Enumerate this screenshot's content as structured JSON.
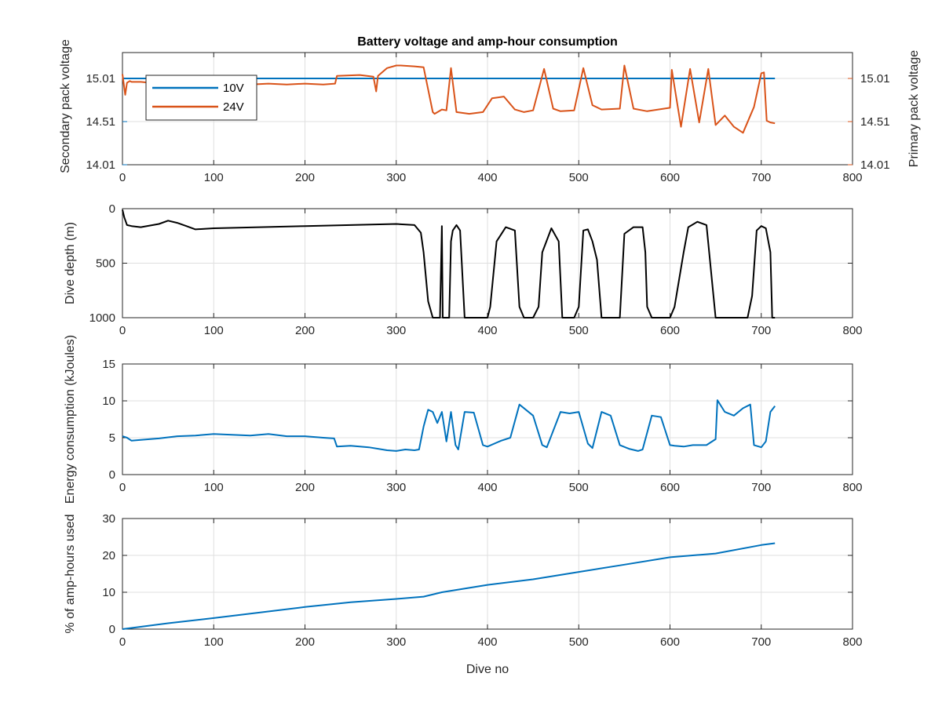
{
  "figure": {
    "title": "Battery voltage and amp-hour consumption",
    "x_label": "Dive no"
  },
  "colors": {
    "blue": "#0072bd",
    "orange": "#d95319",
    "black": "#000000"
  },
  "chart_data": [
    {
      "type": "line",
      "title": "Battery voltage and amp-hour consumption",
      "ylabel_left": "Secondary pack voltage",
      "ylabel_right": "Primary pack voltage",
      "xlim": [
        0,
        800
      ],
      "xticks": [
        0,
        100,
        200,
        300,
        400,
        500,
        600,
        700,
        800
      ],
      "ylim": [
        14.01,
        15.31
      ],
      "yticks": [
        14.01,
        14.51,
        15.01
      ],
      "ytick_labels": [
        "14.01",
        "14.51",
        "15.01"
      ],
      "grid": true,
      "legend": {
        "placement": "top-left",
        "entries": [
          "10V",
          "24V"
        ]
      },
      "series": [
        {
          "name": "10V",
          "axis": "left",
          "color": "#0072bd",
          "x": [
            0,
            715
          ],
          "y": [
            15.01,
            15.01
          ]
        },
        {
          "name": "24V",
          "axis": "right",
          "color": "#d95319",
          "x": [
            0,
            3,
            5,
            8,
            10,
            20,
            30,
            40,
            60,
            80,
            100,
            120,
            140,
            160,
            180,
            200,
            220,
            233,
            235,
            260,
            275,
            278,
            280,
            290,
            300,
            305,
            320,
            330,
            340,
            342,
            350,
            355,
            360,
            366,
            380,
            395,
            405,
            418,
            430,
            440,
            450,
            462,
            472,
            480,
            495,
            505,
            515,
            525,
            545,
            550,
            560,
            575,
            600,
            602,
            612,
            622,
            632,
            642,
            650,
            660,
            670,
            680,
            692,
            700,
            703,
            706,
            710,
            715
          ],
          "y": [
            15.06,
            14.82,
            14.96,
            14.98,
            14.97,
            14.97,
            14.96,
            14.97,
            14.96,
            14.95,
            14.96,
            14.95,
            14.94,
            14.95,
            14.94,
            14.95,
            14.94,
            14.95,
            15.04,
            15.05,
            15.03,
            14.86,
            15.04,
            15.13,
            15.16,
            15.16,
            15.15,
            15.14,
            14.62,
            14.6,
            14.65,
            14.64,
            15.13,
            14.62,
            14.6,
            14.62,
            14.78,
            14.8,
            14.65,
            14.62,
            14.64,
            15.12,
            14.66,
            14.63,
            14.64,
            15.13,
            14.7,
            14.65,
            14.66,
            15.16,
            14.66,
            14.63,
            14.67,
            15.11,
            14.45,
            15.12,
            14.5,
            15.12,
            14.47,
            14.58,
            14.45,
            14.38,
            14.68,
            15.07,
            15.08,
            14.52,
            14.5,
            14.49
          ]
        }
      ]
    },
    {
      "type": "line",
      "ylabel": "Dive depth (m)",
      "xlim": [
        0,
        800
      ],
      "xticks": [
        0,
        100,
        200,
        300,
        400,
        500,
        600,
        700,
        800
      ],
      "ylim": [
        0,
        1000
      ],
      "y_reversed": true,
      "yticks": [
        0,
        500,
        1000
      ],
      "grid": true,
      "series": [
        {
          "color": "#000000",
          "x": [
            0,
            2,
            5,
            10,
            20,
            40,
            50,
            60,
            70,
            80,
            100,
            150,
            200,
            250,
            300,
            320,
            327,
            330,
            335,
            340,
            345,
            348,
            350,
            351,
            352,
            355,
            358,
            360,
            362,
            366,
            370,
            375,
            385,
            395,
            400,
            403,
            410,
            420,
            430,
            435,
            440,
            450,
            456,
            460,
            470,
            478,
            482,
            490,
            495,
            500,
            505,
            510,
            515,
            520,
            525,
            530,
            540,
            545,
            550,
            560,
            570,
            573,
            575,
            580,
            590,
            600,
            605,
            615,
            620,
            630,
            640,
            650,
            653,
            655,
            660,
            670,
            680,
            685,
            690,
            695,
            700,
            705,
            710,
            712,
            715
          ],
          "y": [
            10,
            80,
            150,
            160,
            170,
            140,
            110,
            130,
            160,
            190,
            180,
            170,
            160,
            150,
            140,
            150,
            220,
            400,
            850,
            1000,
            1000,
            1000,
            160,
            1000,
            1000,
            1000,
            1000,
            300,
            200,
            150,
            200,
            1000,
            1000,
            1000,
            1000,
            900,
            300,
            170,
            200,
            900,
            1000,
            1000,
            900,
            400,
            180,
            300,
            1000,
            1000,
            1000,
            900,
            200,
            190,
            300,
            470,
            1000,
            1000,
            1000,
            1000,
            230,
            170,
            170,
            400,
            900,
            1000,
            1000,
            1000,
            900,
            400,
            170,
            120,
            150,
            1000,
            1000,
            1000,
            1000,
            1000,
            1000,
            1000,
            800,
            200,
            160,
            180,
            400,
            1000,
            1000
          ]
        }
      ]
    },
    {
      "type": "line",
      "ylabel": "Energy consumption (kJoules)",
      "xlim": [
        0,
        800
      ],
      "xticks": [
        0,
        100,
        200,
        300,
        400,
        500,
        600,
        700,
        800
      ],
      "ylim": [
        0,
        15
      ],
      "yticks": [
        0,
        5,
        10,
        15
      ],
      "grid": true,
      "series": [
        {
          "color": "#0072bd",
          "x": [
            0,
            5,
            10,
            20,
            40,
            60,
            80,
            100,
            120,
            140,
            160,
            180,
            200,
            220,
            232,
            235,
            250,
            270,
            290,
            300,
            310,
            320,
            325,
            330,
            335,
            340,
            345,
            350,
            355,
            360,
            365,
            368,
            375,
            385,
            395,
            400,
            415,
            425,
            435,
            450,
            460,
            465,
            480,
            490,
            500,
            510,
            515,
            525,
            535,
            545,
            555,
            565,
            570,
            580,
            590,
            600,
            605,
            615,
            625,
            640,
            650,
            652,
            660,
            670,
            680,
            688,
            692,
            700,
            705,
            710,
            715
          ],
          "y": [
            5.2,
            5.0,
            4.6,
            4.7,
            4.9,
            5.2,
            5.3,
            5.5,
            5.4,
            5.3,
            5.5,
            5.2,
            5.2,
            5.0,
            4.9,
            3.8,
            3.9,
            3.7,
            3.3,
            3.2,
            3.4,
            3.3,
            3.4,
            6.5,
            8.8,
            8.5,
            7.0,
            8.5,
            4.5,
            8.5,
            4.0,
            3.4,
            8.5,
            8.4,
            4.0,
            3.8,
            4.6,
            5.0,
            9.5,
            8.0,
            4.0,
            3.7,
            8.5,
            8.3,
            8.5,
            4.2,
            3.6,
            8.5,
            8.0,
            4.0,
            3.5,
            3.2,
            3.4,
            8.0,
            7.8,
            4.0,
            3.9,
            3.8,
            4.0,
            4.0,
            4.8,
            10.1,
            8.5,
            8.0,
            9.0,
            9.5,
            4.0,
            3.7,
            4.5,
            8.5,
            9.3
          ]
        }
      ]
    },
    {
      "type": "line",
      "ylabel": "% of amp-hours used",
      "xlabel": "Dive no",
      "xlim": [
        0,
        800
      ],
      "xticks": [
        0,
        100,
        200,
        300,
        400,
        500,
        600,
        700,
        800
      ],
      "ylim": [
        0,
        30
      ],
      "yticks": [
        0,
        10,
        20,
        30
      ],
      "grid": true,
      "series": [
        {
          "color": "#0072bd",
          "x": [
            0,
            50,
            100,
            150,
            200,
            250,
            300,
            330,
            350,
            400,
            450,
            500,
            550,
            600,
            650,
            700,
            715
          ],
          "y": [
            0,
            1.6,
            3.0,
            4.5,
            6.0,
            7.3,
            8.2,
            8.8,
            10.0,
            12.0,
            13.5,
            15.5,
            17.5,
            19.5,
            20.5,
            22.8,
            23.3
          ]
        }
      ]
    }
  ]
}
